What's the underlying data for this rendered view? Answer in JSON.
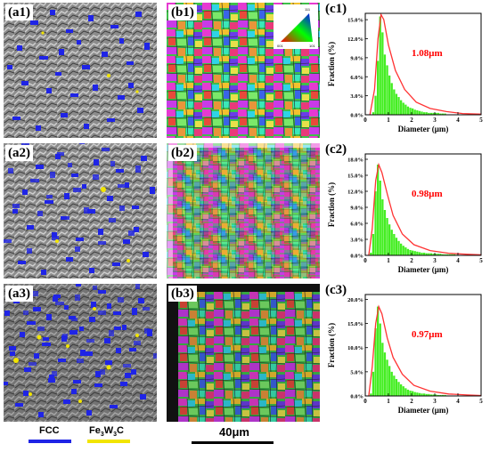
{
  "panels": {
    "a1": "(a1)",
    "a2": "(a2)",
    "a3": "(a3)",
    "b1": "(b1)",
    "b2": "(b2)",
    "b3": "(b3)"
  },
  "legend": {
    "fcc_label": "FCC",
    "fcc_color": "#1f24e6",
    "carbide_label_main": "Fe",
    "carbide_sub1": "3",
    "carbide_mid": "W",
    "carbide_sub2": "3",
    "carbide_end": "C",
    "carbide_color": "#f2e500"
  },
  "scalebar": {
    "label": "40μm"
  },
  "ipf_key": {
    "corner1": "001",
    "corner2": "101",
    "corner3": "111"
  },
  "chart_data": [
    {
      "type": "bar",
      "panel": "(c1)",
      "xlabel": "Diameter (μm)",
      "ylabel": "Fraction (%)",
      "annotation": "1.08μm",
      "xlim": [
        0,
        5
      ],
      "ylim": [
        0,
        0.16
      ],
      "xticks": [
        0,
        1,
        2,
        3,
        4,
        5
      ],
      "yticks": [
        "0.0%",
        "3.0%",
        "6.0%",
        "9.0%",
        "12.0%",
        "15.0%"
      ],
      "ytick_values": [
        0,
        0.03,
        0.06,
        0.09,
        0.12,
        0.15
      ],
      "bar_width": 0.1,
      "x": [
        0.35,
        0.45,
        0.55,
        0.65,
        0.75,
        0.85,
        0.95,
        1.05,
        1.15,
        1.25,
        1.35,
        1.45,
        1.55,
        1.65,
        1.75,
        1.85,
        1.95,
        2.05,
        2.15,
        2.25,
        2.35,
        2.45,
        2.55,
        2.65,
        2.75,
        2.85,
        2.95,
        3.05,
        3.15,
        3.25,
        3.35,
        3.45
      ],
      "values": [
        0.004,
        0.03,
        0.085,
        0.155,
        0.13,
        0.095,
        0.078,
        0.062,
        0.05,
        0.04,
        0.033,
        0.028,
        0.023,
        0.019,
        0.016,
        0.013,
        0.011,
        0.01,
        0.008,
        0.007,
        0.006,
        0.005,
        0.004,
        0.004,
        0.003,
        0.003,
        0.003,
        0.003,
        0.003,
        0.002,
        0.002,
        0.002
      ],
      "fit": [
        [
          0.2,
          0
        ],
        [
          0.4,
          0.04
        ],
        [
          0.55,
          0.12
        ],
        [
          0.68,
          0.158
        ],
        [
          0.8,
          0.15
        ],
        [
          1.0,
          0.11
        ],
        [
          1.3,
          0.07
        ],
        [
          1.7,
          0.04
        ],
        [
          2.2,
          0.02
        ],
        [
          2.8,
          0.01
        ],
        [
          3.5,
          0.005
        ],
        [
          4.2,
          0.002
        ],
        [
          5,
          0.001
        ]
      ],
      "colors": {
        "bar": "#44ee22",
        "fit": "#ff3333",
        "annotation": "#ff0000"
      }
    },
    {
      "type": "bar",
      "panel": "(c2)",
      "xlabel": "Diameter (μm)",
      "ylabel": "Fraction (%)",
      "annotation": "0.98μm",
      "xlim": [
        0,
        5
      ],
      "ylim": [
        0,
        0.19
      ],
      "xticks": [
        0,
        1,
        2,
        3,
        4,
        5
      ],
      "yticks": [
        "0.0%",
        "3.0%",
        "6.0%",
        "9.0%",
        "12.0%",
        "15.0%",
        "18.0%"
      ],
      "ytick_values": [
        0,
        0.03,
        0.06,
        0.09,
        0.12,
        0.15,
        0.18
      ],
      "bar_width": 0.1,
      "x": [
        0.25,
        0.35,
        0.45,
        0.55,
        0.65,
        0.75,
        0.85,
        0.95,
        1.05,
        1.15,
        1.25,
        1.35,
        1.45,
        1.55,
        1.65,
        1.75,
        1.85,
        1.95,
        2.05,
        2.15,
        2.25,
        2.35,
        2.45,
        2.55,
        2.65,
        2.75,
        2.85,
        2.95,
        3.05,
        3.15,
        3.25,
        3.35,
        3.45,
        3.55,
        3.65,
        3.75,
        3.85,
        3.95
      ],
      "values": [
        0.005,
        0.04,
        0.12,
        0.17,
        0.14,
        0.105,
        0.085,
        0.07,
        0.058,
        0.048,
        0.04,
        0.033,
        0.027,
        0.022,
        0.018,
        0.015,
        0.012,
        0.01,
        0.009,
        0.008,
        0.007,
        0.006,
        0.005,
        0.005,
        0.004,
        0.004,
        0.004,
        0.003,
        0.003,
        0.003,
        0.003,
        0.002,
        0.002,
        0.002,
        0.002,
        0.002,
        0.002,
        0.001
      ],
      "fit": [
        [
          0.15,
          0
        ],
        [
          0.3,
          0.05
        ],
        [
          0.45,
          0.14
        ],
        [
          0.58,
          0.17
        ],
        [
          0.72,
          0.155
        ],
        [
          0.95,
          0.115
        ],
        [
          1.2,
          0.075
        ],
        [
          1.6,
          0.04
        ],
        [
          2.1,
          0.02
        ],
        [
          2.8,
          0.009
        ],
        [
          3.6,
          0.004
        ],
        [
          4.4,
          0.002
        ],
        [
          5,
          0.001
        ]
      ],
      "colors": {
        "bar": "#44ee22",
        "fit": "#ff3333",
        "annotation": "#ff0000"
      }
    },
    {
      "type": "bar",
      "panel": "(c3)",
      "xlabel": "Diameter (μm)",
      "ylabel": "Fraction (%)",
      "annotation": "0.97μm",
      "xlim": [
        0,
        5
      ],
      "ylim": [
        0,
        0.21
      ],
      "xticks": [
        0,
        1,
        2,
        3,
        4,
        5
      ],
      "yticks": [
        "0.0%",
        "5.0%",
        "10.0%",
        "15.0%",
        "20.0%"
      ],
      "ytick_values": [
        0,
        0.05,
        0.1,
        0.15,
        0.2
      ],
      "bar_width": 0.1,
      "x": [
        0.25,
        0.35,
        0.45,
        0.55,
        0.65,
        0.75,
        0.85,
        0.95,
        1.05,
        1.15,
        1.25,
        1.35,
        1.45,
        1.55,
        1.65,
        1.75,
        1.85,
        1.95,
        2.05,
        2.15,
        2.25,
        2.35,
        2.45,
        2.55,
        2.65,
        2.75,
        2.85,
        2.95,
        3.05,
        3.15,
        3.25,
        3.35,
        3.45,
        3.55
      ],
      "values": [
        0.005,
        0.05,
        0.14,
        0.185,
        0.15,
        0.11,
        0.09,
        0.075,
        0.062,
        0.05,
        0.042,
        0.035,
        0.029,
        0.024,
        0.02,
        0.016,
        0.013,
        0.011,
        0.01,
        0.008,
        0.007,
        0.006,
        0.005,
        0.005,
        0.004,
        0.004,
        0.003,
        0.003,
        0.003,
        0.002,
        0.002,
        0.002,
        0.002,
        0.001
      ],
      "fit": [
        [
          0.15,
          0
        ],
        [
          0.3,
          0.06
        ],
        [
          0.45,
          0.15
        ],
        [
          0.58,
          0.185
        ],
        [
          0.72,
          0.17
        ],
        [
          0.95,
          0.12
        ],
        [
          1.2,
          0.08
        ],
        [
          1.6,
          0.045
        ],
        [
          2.1,
          0.022
        ],
        [
          2.8,
          0.01
        ],
        [
          3.6,
          0.004
        ],
        [
          4.4,
          0.002
        ],
        [
          5,
          0.001
        ]
      ],
      "colors": {
        "bar": "#44ee22",
        "fit": "#ff3333",
        "annotation": "#ff0000"
      }
    }
  ]
}
